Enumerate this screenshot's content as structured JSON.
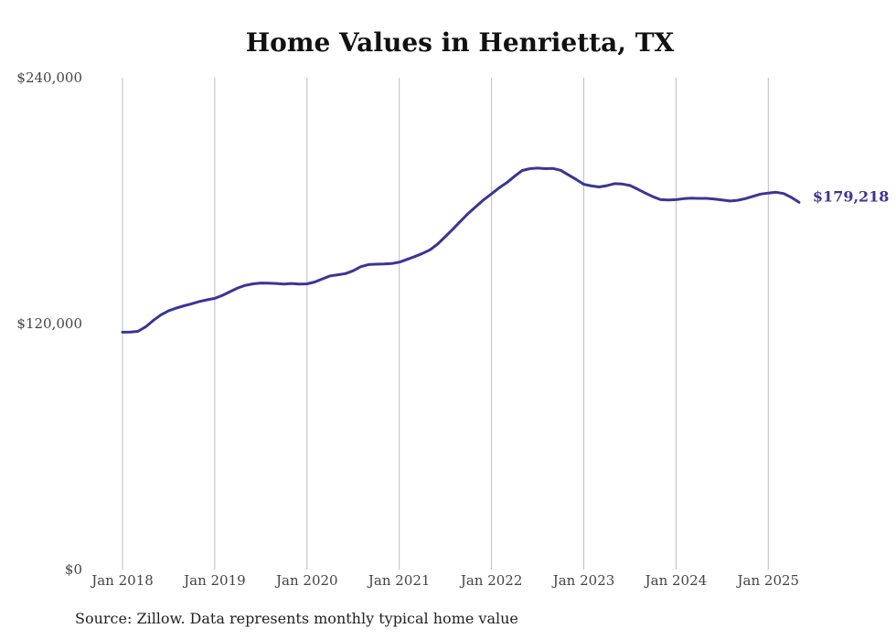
{
  "chart_data": {
    "type": "line",
    "title": "Home Values in Henrietta, TX",
    "source": "Source: Zillow. Data represents monthly typical home value",
    "ylim": [
      0,
      240000
    ],
    "xlim": [
      "2018-01",
      "2025-05"
    ],
    "y_ticks": [
      {
        "value": 240000,
        "label": "$240,000"
      },
      {
        "value": 120000,
        "label": "$120,000"
      },
      {
        "value": 0,
        "label": "$0"
      }
    ],
    "x_ticks": [
      {
        "date": "2018-01",
        "label": "Jan 2018"
      },
      {
        "date": "2019-01",
        "label": "Jan 2019"
      },
      {
        "date": "2020-01",
        "label": "Jan 2020"
      },
      {
        "date": "2021-01",
        "label": "Jan 2021"
      },
      {
        "date": "2022-01",
        "label": "Jan 2022"
      },
      {
        "date": "2023-01",
        "label": "Jan 2023"
      },
      {
        "date": "2024-01",
        "label": "Jan 2024"
      },
      {
        "date": "2025-01",
        "label": "Jan 2025"
      }
    ],
    "grid": "vertical",
    "line_color": "#3b3596",
    "end_label": "$179,218",
    "series": [
      {
        "x": [
          "2018-01",
          "2018-02",
          "2018-03",
          "2018-04",
          "2018-05",
          "2018-06",
          "2018-07",
          "2018-08",
          "2018-09",
          "2018-10",
          "2018-11",
          "2018-12",
          "2019-01",
          "2019-02",
          "2019-03",
          "2019-04",
          "2019-05",
          "2019-06",
          "2019-07",
          "2019-08",
          "2019-09",
          "2019-10",
          "2019-11",
          "2019-12",
          "2020-01",
          "2020-02",
          "2020-03",
          "2020-04",
          "2020-05",
          "2020-06",
          "2020-07",
          "2020-08",
          "2020-09",
          "2020-10",
          "2020-11",
          "2020-12",
          "2021-01",
          "2021-02",
          "2021-03",
          "2021-04",
          "2021-05",
          "2021-06",
          "2021-07",
          "2021-08",
          "2021-09",
          "2021-10",
          "2021-11",
          "2021-12",
          "2022-01",
          "2022-02",
          "2022-03",
          "2022-04",
          "2022-05",
          "2022-06",
          "2022-07",
          "2022-08",
          "2022-09",
          "2022-10",
          "2022-11",
          "2022-12",
          "2023-01",
          "2023-02",
          "2023-03",
          "2023-04",
          "2023-05",
          "2023-06",
          "2023-07",
          "2023-08",
          "2023-09",
          "2023-10",
          "2023-11",
          "2023-12",
          "2024-01",
          "2024-02",
          "2024-03",
          "2024-04",
          "2024-05",
          "2024-06",
          "2024-07",
          "2024-08",
          "2024-09",
          "2024-10",
          "2024-11",
          "2024-12",
          "2025-01",
          "2025-02",
          "2025-03",
          "2025-04",
          "2025-05"
        ],
        "y": [
          115800,
          115900,
          116200,
          118400,
          121500,
          124300,
          126300,
          127600,
          128700,
          129700,
          130800,
          131600,
          132300,
          133800,
          135600,
          137400,
          138700,
          139400,
          139800,
          139700,
          139600,
          139300,
          139600,
          139300,
          139400,
          140300,
          141800,
          143300,
          143800,
          144400,
          145800,
          147800,
          148800,
          149000,
          149100,
          149300,
          150000,
          151300,
          152700,
          154200,
          156000,
          158800,
          162500,
          166200,
          170100,
          173900,
          177200,
          180500,
          183300,
          186300,
          188800,
          191900,
          194700,
          195600,
          195900,
          195600,
          195700,
          194800,
          192600,
          190400,
          188000,
          187200,
          186700,
          187300,
          188300,
          188100,
          187400,
          185600,
          183700,
          181900,
          180500,
          180300,
          180500,
          181000,
          181200,
          181100,
          181100,
          180800,
          180300,
          179800,
          180200,
          181000,
          182100,
          183200,
          183700,
          184100,
          183500,
          181600,
          179218
        ]
      }
    ]
  }
}
